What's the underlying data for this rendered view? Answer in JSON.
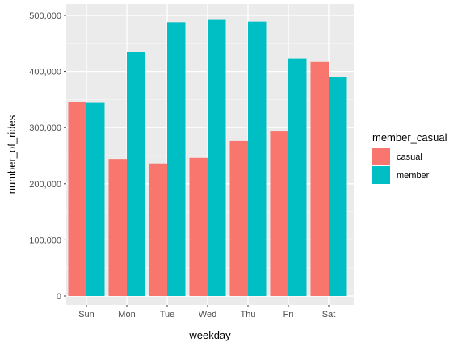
{
  "chart_data": {
    "type": "bar",
    "categories": [
      "Sun",
      "Mon",
      "Tue",
      "Wed",
      "Thu",
      "Fri",
      "Sat"
    ],
    "series": [
      {
        "name": "casual",
        "color": "#F8766D",
        "values": [
          345000,
          244000,
          236000,
          246000,
          276000,
          293000,
          417000
        ]
      },
      {
        "name": "member",
        "color": "#00BFC4",
        "values": [
          344000,
          435000,
          488000,
          492000,
          489000,
          423000,
          390000
        ]
      }
    ],
    "xlabel": "weekday",
    "ylabel": "number_of_rides",
    "ylim": [
      0,
      510000
    ],
    "yticks": [
      0,
      100000,
      200000,
      300000,
      400000,
      500000
    ],
    "ytick_labels": [
      "0",
      "100,000",
      "200,000",
      "300,000",
      "400,000",
      "500,000"
    ],
    "legend": {
      "title": "member_casual",
      "position": "right"
    },
    "grid": true,
    "panel_color": "#EBEBEB"
  }
}
